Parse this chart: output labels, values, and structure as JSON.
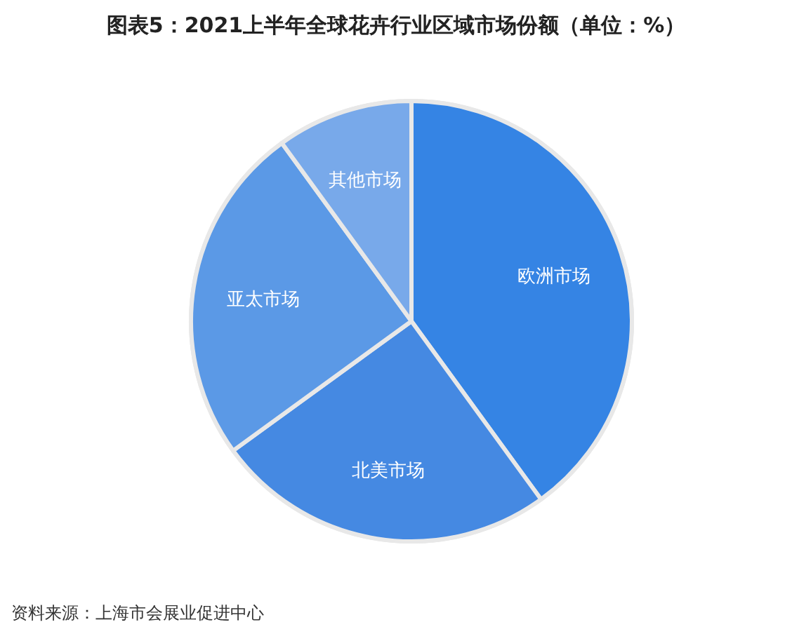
{
  "chart_data": {
    "type": "pie",
    "title": "图表5：2021上半年全球花卉行业区域市场份额（单位：%）",
    "categories": [
      "欧洲市场",
      "北美市场",
      "亚太市场",
      "其他市场"
    ],
    "values": [
      40,
      25,
      25,
      10
    ],
    "colors": [
      "#3584e4",
      "#4589e2",
      "#5b99e6",
      "#78a9ea"
    ],
    "annotations": [
      "资料来源：上海市会展业促进中心"
    ]
  }
}
